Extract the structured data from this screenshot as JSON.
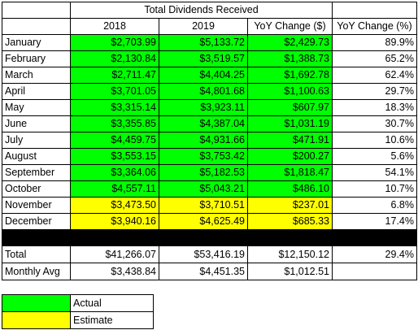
{
  "title": "Total Dividends Received",
  "colors": {
    "actual": "#00ff00",
    "estimate": "#ffff00",
    "separator": "#000000"
  },
  "headers": [
    "",
    "2018",
    "2019",
    "YoY Change ($)",
    "YoY Change (%)"
  ],
  "rows": [
    {
      "month": "January",
      "y2018": "$2,703.99",
      "y2019": "$5,133.72",
      "chg": "$2,429.73",
      "pct": "89.9%",
      "status": "actual"
    },
    {
      "month": "February",
      "y2018": "$2,130.84",
      "y2019": "$3,519.57",
      "chg": "$1,388.73",
      "pct": "65.2%",
      "status": "actual"
    },
    {
      "month": "March",
      "y2018": "$2,711.47",
      "y2019": "$4,404.25",
      "chg": "$1,692.78",
      "pct": "62.4%",
      "status": "actual"
    },
    {
      "month": "April",
      "y2018": "$3,701.05",
      "y2019": "$4,801.68",
      "chg": "$1,100.63",
      "pct": "29.7%",
      "status": "actual"
    },
    {
      "month": "May",
      "y2018": "$3,315.14",
      "y2019": "$3,923.11",
      "chg": "$607.97",
      "pct": "18.3%",
      "status": "actual"
    },
    {
      "month": "June",
      "y2018": "$3,355.85",
      "y2019": "$4,387.04",
      "chg": "$1,031.19",
      "pct": "30.7%",
      "status": "actual"
    },
    {
      "month": "July",
      "y2018": "$4,459.75",
      "y2019": "$4,931.66",
      "chg": "$471.91",
      "pct": "10.6%",
      "status": "actual"
    },
    {
      "month": "August",
      "y2018": "$3,553.15",
      "y2019": "$3,753.42",
      "chg": "$200.27",
      "pct": "5.6%",
      "status": "actual"
    },
    {
      "month": "September",
      "y2018": "$3,364.06",
      "y2019": "$5,182.53",
      "chg": "$1,818.47",
      "pct": "54.1%",
      "status": "actual"
    },
    {
      "month": "October",
      "y2018": "$4,557.11",
      "y2019": "$5,043.21",
      "chg": "$486.10",
      "pct": "10.7%",
      "status": "actual"
    },
    {
      "month": "November",
      "y2018": "$3,473.50",
      "y2019": "$3,710.51",
      "chg": "$237.01",
      "pct": "6.8%",
      "status": "estimate"
    },
    {
      "month": "December",
      "y2018": "$3,940.16",
      "y2019": "$4,625.49",
      "chg": "$685.33",
      "pct": "17.4%",
      "status": "estimate"
    }
  ],
  "total": {
    "label": "Total",
    "y2018": "$41,266.07",
    "y2019": "$53,416.19",
    "chg": "$12,150.12",
    "pct": "29.4%"
  },
  "monthly": {
    "label": "Monthly Avg",
    "y2018": "$3,438.84",
    "y2019": "$4,451.35",
    "chg": "$1,012.51",
    "pct": ""
  },
  "legend": [
    {
      "label": "Actual",
      "status": "actual"
    },
    {
      "label": "Estimate",
      "status": "estimate"
    }
  ]
}
